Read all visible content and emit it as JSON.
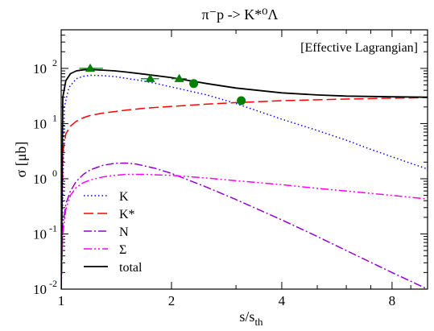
{
  "chart_data": {
    "type": "line",
    "title": "π⁻p -> K*⁰Λ",
    "annotation": "[Effective Lagrangian]",
    "xlabel": "s/s",
    "xlabel_sub": "th",
    "ylabel": "σ [μb]",
    "xscale": "log",
    "yscale": "log",
    "xlim": [
      1,
      10
    ],
    "ylim": [
      0.01,
      500
    ],
    "xticks": [
      {
        "value": 1,
        "label": "1"
      },
      {
        "value": 2,
        "label": "2"
      },
      {
        "value": 4,
        "label": "4"
      },
      {
        "value": 8,
        "label": "8"
      }
    ],
    "yticks": [
      {
        "value": 0.01,
        "base": "10",
        "exp": "-2"
      },
      {
        "value": 0.1,
        "base": "10",
        "exp": "-1"
      },
      {
        "value": 1,
        "base": "10",
        "exp": "0"
      },
      {
        "value": 10,
        "base": "10",
        "exp": "1"
      },
      {
        "value": 100,
        "base": "10",
        "exp": "2"
      }
    ],
    "legend_position": "bottom-left",
    "grid": false,
    "series": [
      {
        "name": "K",
        "color": "#0000ff",
        "dash": "1.5,3",
        "width": 1.5,
        "x": [
          1.0,
          1.02,
          1.05,
          1.1,
          1.15,
          1.2,
          1.3,
          1.4,
          1.6,
          1.8,
          2.0,
          2.5,
          3.0,
          4.0,
          5.0,
          6.0,
          7.0,
          8.0,
          9.0,
          10.0
        ],
        "y": [
          0.01,
          20,
          45,
          65,
          72,
          75,
          74,
          71,
          62,
          54,
          46,
          33,
          23,
          12,
          7.5,
          5,
          3.4,
          2.5,
          1.9,
          1.5
        ]
      },
      {
        "name": "K*",
        "color": "#ff0000",
        "dash": "12,5",
        "width": 1.5,
        "x": [
          1.0,
          1.01,
          1.03,
          1.06,
          1.1,
          1.15,
          1.2,
          1.3,
          1.5,
          1.7,
          2.0,
          2.5,
          3.0,
          4.0,
          5.0,
          6.0,
          8.0,
          10.0
        ],
        "y": [
          0.01,
          3,
          6.5,
          9,
          11,
          12.8,
          14,
          15.5,
          17.5,
          19,
          20.5,
          22.5,
          24,
          26,
          27,
          27.8,
          28.8,
          29.5
        ]
      },
      {
        "name": "N",
        "color": "#9400d3",
        "dash": "10,3,2,3",
        "width": 1.5,
        "x": [
          1.0,
          1.01,
          1.03,
          1.06,
          1.1,
          1.15,
          1.2,
          1.3,
          1.4,
          1.5,
          1.6,
          1.8,
          2.0,
          2.5,
          3.0,
          4.0,
          5.0,
          6.0,
          8.0,
          10.0
        ],
        "y": [
          0.01,
          0.15,
          0.35,
          0.6,
          0.9,
          1.2,
          1.45,
          1.75,
          1.9,
          1.92,
          1.85,
          1.55,
          1.25,
          0.7,
          0.42,
          0.18,
          0.09,
          0.05,
          0.02,
          0.01
        ]
      },
      {
        "name": "Σ",
        "color": "#ff00ff",
        "dash": "10,3,2,3,2,3",
        "width": 1.5,
        "x": [
          1.0,
          1.01,
          1.03,
          1.06,
          1.1,
          1.15,
          1.2,
          1.3,
          1.4,
          1.5,
          1.7,
          2.0,
          2.5,
          3.0,
          4.0,
          5.0,
          6.0,
          8.0,
          10.0
        ],
        "y": [
          0.01,
          0.1,
          0.28,
          0.5,
          0.7,
          0.85,
          0.95,
          1.08,
          1.15,
          1.2,
          1.2,
          1.15,
          1.03,
          0.92,
          0.78,
          0.67,
          0.6,
          0.5,
          0.43
        ]
      },
      {
        "name": "total",
        "color": "#000000",
        "dash": "",
        "width": 1.8,
        "x": [
          1.0,
          1.01,
          1.03,
          1.06,
          1.1,
          1.15,
          1.2,
          1.3,
          1.4,
          1.5,
          1.7,
          2.0,
          2.5,
          3.0,
          4.0,
          5.0,
          6.0,
          8.0,
          10.0
        ],
        "y": [
          0.01,
          30,
          60,
          80,
          90,
          94,
          95,
          93,
          90,
          86,
          78,
          68,
          53,
          44,
          36,
          33,
          31.5,
          30.5,
          30
        ]
      }
    ],
    "data_points": [
      {
        "marker": "triangle",
        "color": "#008000",
        "x": 1.2,
        "y": 100,
        "xerr": [
          1.12,
          1.3
        ]
      },
      {
        "marker": "triangle",
        "color": "#008000",
        "x": 1.75,
        "y": 65,
        "xerr": [
          1.65,
          1.85
        ]
      },
      {
        "marker": "triangle",
        "color": "#008000",
        "x": 2.1,
        "y": 65,
        "xerr": [
          2.0,
          2.2
        ]
      },
      {
        "marker": "circle",
        "color": "#008000",
        "x": 2.3,
        "y": 53
      },
      {
        "marker": "circle",
        "color": "#008000",
        "x": 3.1,
        "y": 26
      }
    ]
  }
}
